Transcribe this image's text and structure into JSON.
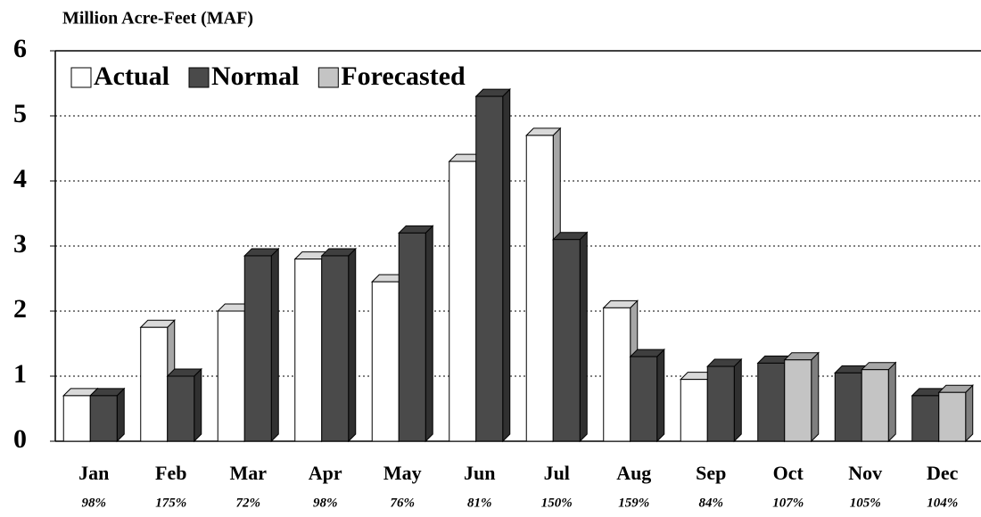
{
  "chart_data": {
    "type": "bar3d",
    "title": "Million Acre-Feet (MAF)",
    "categories": [
      "Jan",
      "Feb",
      "Mar",
      "Apr",
      "May",
      "Jun",
      "Jul",
      "Aug",
      "Sep",
      "Oct",
      "Nov",
      "Dec"
    ],
    "category_notes": [
      "98%",
      "175%",
      "72%",
      "98%",
      "76%",
      "81%",
      "150%",
      "159%",
      "84%",
      "107%",
      "105%",
      "104%"
    ],
    "series": [
      {
        "name": "Actual",
        "color": "#ffffff",
        "values": [
          0.7,
          1.75,
          2.0,
          2.8,
          2.45,
          4.3,
          4.7,
          2.05,
          0.95,
          null,
          null,
          null
        ]
      },
      {
        "name": "Normal",
        "color": "#4a4a4a",
        "values": [
          0.7,
          1.0,
          2.85,
          2.85,
          3.2,
          5.3,
          3.1,
          1.3,
          1.15,
          1.2,
          1.05,
          0.7
        ]
      },
      {
        "name": "Forecasted",
        "color": "#c4c4c4",
        "values": [
          null,
          null,
          null,
          null,
          null,
          null,
          null,
          null,
          null,
          1.25,
          1.1,
          0.75
        ]
      }
    ],
    "ylim": [
      0,
      6
    ],
    "yticks": [
      0,
      1,
      2,
      3,
      4,
      5,
      6
    ],
    "grid": true,
    "legend": "top-left"
  }
}
